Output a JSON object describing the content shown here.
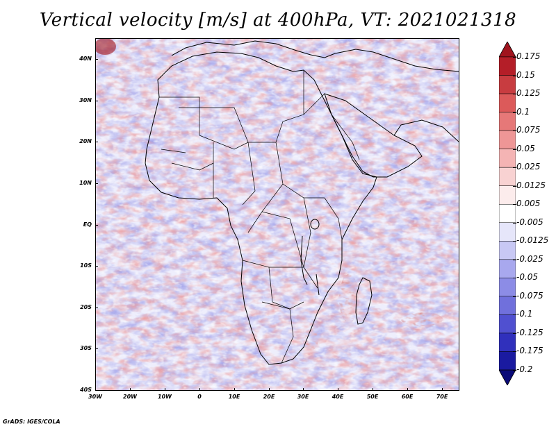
{
  "title": "Vertical velocity [m/s] at 400hPa, VT: 2021021318",
  "footer": "GrADS: IGES/COLA",
  "map": {
    "lat_labels": [
      "40N",
      "30N",
      "20N",
      "10N",
      "EQ",
      "10S",
      "20S",
      "30S",
      "40S"
    ],
    "lon_labels": [
      "30W",
      "20W",
      "10W",
      "0",
      "10E",
      "20E",
      "30E",
      "40E",
      "50E",
      "60E",
      "70E"
    ],
    "lat_range": [
      -40,
      45
    ],
    "lon_range": [
      -30,
      75
    ]
  },
  "colorbar": {
    "labels": [
      "0.175",
      "0.15",
      "0.125",
      "0.1",
      "0.075",
      "0.05",
      "0.025",
      "0.0125",
      "0.005",
      "-0.005",
      "-0.0125",
      "-0.025",
      "-0.05",
      "-0.075",
      "-0.1",
      "-0.125",
      "-0.175",
      "-0.2"
    ],
    "colors": [
      "#a0141e",
      "#b41e28",
      "#c83c40",
      "#dc5a5a",
      "#e67878",
      "#ee9696",
      "#f4b4b4",
      "#f8d2d2",
      "#fcecec",
      "#ffffff",
      "#e6e6fa",
      "#c8c8f4",
      "#a8a8ee",
      "#8c8ce6",
      "#7070dc",
      "#5050d0",
      "#3030bc",
      "#1a1aa0",
      "#0a0a78"
    ]
  }
}
